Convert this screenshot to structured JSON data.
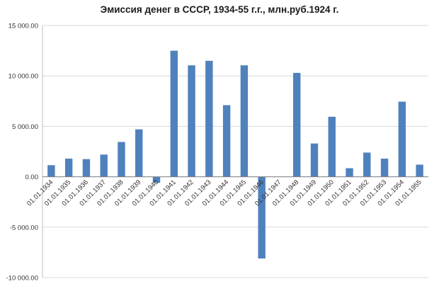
{
  "chart_data": {
    "type": "bar",
    "title": "Эмиссия денег в СССР, 1934-55 г.г., млн.руб.1924 г.",
    "xlabel": "",
    "ylabel": "",
    "ylim": [
      -10000,
      15000
    ],
    "yticks": [
      {
        "value": 15000,
        "label": "15 000.00"
      },
      {
        "value": 10000,
        "label": "10 000.00"
      },
      {
        "value": 5000,
        "label": "5 000.00"
      },
      {
        "value": 0,
        "label": "0.00"
      },
      {
        "value": -5000,
        "label": "-5 000.00"
      },
      {
        "value": -10000,
        "label": "-10 000.00"
      }
    ],
    "grid": true,
    "bar_color": "#4f81bd",
    "grid_color": "#d9d9d9",
    "categories": [
      "01.01.1934",
      "01.01.1935",
      "01.01.1936",
      "01.01.1937",
      "01.01.1938",
      "01.01.1939",
      "01.01.1940",
      "01.01.1941",
      "01.01.1942",
      "01.01.1943",
      "01.01.1944",
      "01.01.1945",
      "01.01.1946",
      "01.01.1947",
      "01.01.1948",
      "01.01.1949",
      "01.01.1950",
      "01.01.1951",
      "01.01.1952",
      "01.01.1953",
      "01.01.1954",
      "01.01.1955"
    ],
    "values": [
      1150,
      1800,
      1750,
      2200,
      3450,
      4700,
      -600,
      12500,
      11050,
      11500,
      7100,
      11050,
      -8100,
      0,
      10300,
      3300,
      5950,
      850,
      2400,
      1800,
      7450,
      1200
    ]
  }
}
